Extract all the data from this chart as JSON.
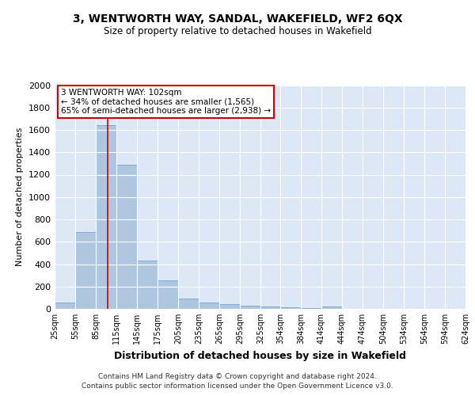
{
  "title": "3, WENTWORTH WAY, SANDAL, WAKEFIELD, WF2 6QX",
  "subtitle": "Size of property relative to detached houses in Wakefield",
  "xlabel": "Distribution of detached houses by size in Wakefield",
  "ylabel": "Number of detached properties",
  "bar_color": "#aec6e0",
  "bar_edge_color": "#6699cc",
  "background_color": "#dce8f5",
  "grid_color": "#ffffff",
  "property_line_x": 102,
  "property_line_color": "#cc0000",
  "annotation_text": "3 WENTWORTH WAY: 102sqm\n← 34% of detached houses are smaller (1,565)\n65% of semi-detached houses are larger (2,938) →",
  "annotation_box_color": "#ffffff",
  "annotation_border_color": "#cc0000",
  "footnote1": "Contains HM Land Registry data © Crown copyright and database right 2024.",
  "footnote2": "Contains public sector information licensed under the Open Government Licence v3.0.",
  "bins": [
    25,
    55,
    85,
    115,
    145,
    175,
    205,
    235,
    265,
    295,
    325,
    354,
    384,
    414,
    444,
    474,
    504,
    534,
    564,
    594,
    624
  ],
  "values": [
    60,
    690,
    1640,
    1290,
    435,
    255,
    95,
    55,
    40,
    25,
    20,
    15,
    5,
    20,
    0,
    0,
    0,
    0,
    0,
    0
  ],
  "ylim": [
    0,
    2000
  ],
  "yticks": [
    0,
    200,
    400,
    600,
    800,
    1000,
    1200,
    1400,
    1600,
    1800,
    2000
  ]
}
